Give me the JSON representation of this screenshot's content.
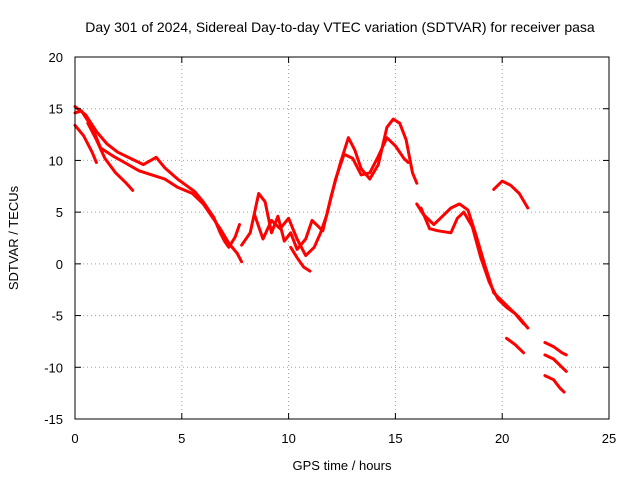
{
  "chart_data": {
    "type": "scatter",
    "title": "Day 301 of 2024, Sidereal Day-to-day VTEC variation (SDTVAR) for receiver pasa",
    "xlabel": "GPS time / hours",
    "ylabel": "SDTVAR / TECUs",
    "xlim": [
      0,
      25
    ],
    "ylim": [
      -15,
      20
    ],
    "xticks": [
      0,
      5,
      10,
      15,
      20,
      25
    ],
    "yticks": [
      -15,
      -10,
      -5,
      0,
      5,
      10,
      15,
      20
    ],
    "xtick_labels": [
      "0",
      "5",
      "10",
      "15",
      "20",
      "25"
    ],
    "ytick_labels": [
      "-15",
      "-10",
      "-5",
      "0",
      "5",
      "10",
      "15",
      "20"
    ],
    "grid": true,
    "marker": "plus",
    "color": "#ff0000",
    "series": [
      {
        "name": "track-1",
        "points": [
          [
            0.0,
            15.2
          ],
          [
            0.5,
            14.4
          ],
          [
            1.0,
            12.8
          ],
          [
            1.5,
            11.6
          ],
          [
            2.0,
            10.8
          ],
          [
            2.6,
            10.2
          ],
          [
            3.2,
            9.6
          ],
          [
            3.8,
            10.3
          ],
          [
            4.2,
            9.3
          ],
          [
            4.8,
            8.2
          ],
          [
            5.2,
            7.6
          ],
          [
            5.6,
            7.0
          ],
          [
            6.0,
            6.0
          ],
          [
            6.5,
            4.5
          ],
          [
            6.8,
            3.0
          ],
          [
            7.0,
            2.2
          ],
          [
            7.2,
            1.6
          ],
          [
            7.5,
            2.6
          ],
          [
            7.7,
            3.8
          ]
        ]
      },
      {
        "name": "track-2",
        "points": [
          [
            0.0,
            14.6
          ],
          [
            0.3,
            14.8
          ],
          [
            0.8,
            13.2
          ],
          [
            1.2,
            11.2
          ],
          [
            1.8,
            10.4
          ],
          [
            2.4,
            9.7
          ],
          [
            3.0,
            9.0
          ],
          [
            3.6,
            8.6
          ],
          [
            4.2,
            8.2
          ],
          [
            4.8,
            7.4
          ],
          [
            5.5,
            6.8
          ],
          [
            6.0,
            5.8
          ],
          [
            6.4,
            4.6
          ],
          [
            6.8,
            3.4
          ],
          [
            7.2,
            2.0
          ],
          [
            7.6,
            1.0
          ],
          [
            7.8,
            0.2
          ]
        ]
      },
      {
        "name": "track-3",
        "points": [
          [
            0.0,
            13.4
          ],
          [
            0.4,
            12.4
          ],
          [
            0.8,
            10.8
          ],
          [
            1.0,
            9.8
          ]
        ]
      },
      {
        "name": "track-4",
        "points": [
          [
            0.6,
            13.6
          ],
          [
            1.0,
            12.0
          ],
          [
            1.4,
            10.2
          ],
          [
            1.9,
            8.8
          ],
          [
            2.4,
            7.8
          ],
          [
            2.7,
            7.1
          ]
        ]
      },
      {
        "name": "track-5",
        "points": [
          [
            7.8,
            1.8
          ],
          [
            8.2,
            3.0
          ],
          [
            8.6,
            6.8
          ],
          [
            8.9,
            6.0
          ],
          [
            9.2,
            3.0
          ],
          [
            9.5,
            4.6
          ],
          [
            9.8,
            2.2
          ],
          [
            10.1,
            3.0
          ],
          [
            10.4,
            1.4
          ],
          [
            10.8,
            2.4
          ],
          [
            11.1,
            4.2
          ],
          [
            11.6,
            3.2
          ],
          [
            12.0,
            6.6
          ],
          [
            12.4,
            9.6
          ],
          [
            12.8,
            12.2
          ],
          [
            13.1,
            11.0
          ],
          [
            13.4,
            9.2
          ],
          [
            13.8,
            8.2
          ],
          [
            14.2,
            9.6
          ],
          [
            14.6,
            13.2
          ],
          [
            14.9,
            14.0
          ],
          [
            15.2,
            13.6
          ],
          [
            15.5,
            12.0
          ],
          [
            15.8,
            8.8
          ],
          [
            16.0,
            7.8
          ]
        ]
      },
      {
        "name": "track-6",
        "points": [
          [
            8.4,
            4.8
          ],
          [
            8.8,
            2.4
          ],
          [
            9.2,
            4.2
          ],
          [
            9.6,
            3.4
          ],
          [
            10.0,
            4.4
          ],
          [
            10.4,
            2.4
          ],
          [
            10.8,
            0.8
          ],
          [
            11.2,
            1.6
          ],
          [
            11.5,
            3.0
          ],
          [
            11.8,
            4.8
          ],
          [
            12.2,
            8.2
          ],
          [
            12.6,
            10.6
          ],
          [
            13.0,
            10.2
          ],
          [
            13.4,
            8.6
          ],
          [
            13.8,
            8.8
          ],
          [
            14.2,
            10.4
          ],
          [
            14.6,
            12.2
          ],
          [
            15.0,
            11.4
          ],
          [
            15.4,
            10.2
          ],
          [
            15.6,
            9.8
          ]
        ]
      },
      {
        "name": "track-7",
        "points": [
          [
            10.1,
            1.6
          ],
          [
            10.4,
            0.6
          ],
          [
            10.7,
            -0.3
          ],
          [
            11.0,
            -0.7
          ]
        ]
      },
      {
        "name": "track-8",
        "points": [
          [
            16.0,
            5.8
          ],
          [
            16.3,
            4.8
          ],
          [
            16.8,
            3.8
          ],
          [
            17.2,
            4.6
          ],
          [
            17.6,
            5.4
          ],
          [
            18.0,
            5.8
          ],
          [
            18.4,
            5.2
          ],
          [
            18.8,
            2.6
          ],
          [
            19.2,
            -0.2
          ],
          [
            19.6,
            -2.8
          ],
          [
            20.0,
            -3.6
          ],
          [
            20.4,
            -4.4
          ],
          [
            20.8,
            -5.2
          ],
          [
            21.2,
            -6.2
          ]
        ]
      },
      {
        "name": "track-9",
        "points": [
          [
            16.2,
            5.4
          ],
          [
            16.6,
            3.4
          ],
          [
            17.0,
            3.2
          ],
          [
            17.6,
            3.0
          ],
          [
            17.9,
            4.4
          ],
          [
            18.2,
            5.0
          ],
          [
            18.6,
            3.6
          ],
          [
            19.0,
            0.6
          ],
          [
            19.4,
            -1.8
          ],
          [
            19.8,
            -3.4
          ],
          [
            20.2,
            -4.2
          ],
          [
            20.6,
            -4.8
          ],
          [
            21.0,
            -5.8
          ]
        ]
      },
      {
        "name": "track-10",
        "points": [
          [
            19.6,
            7.2
          ],
          [
            20.0,
            8.0
          ],
          [
            20.4,
            7.6
          ],
          [
            20.8,
            6.8
          ],
          [
            21.2,
            5.4
          ]
        ]
      },
      {
        "name": "track-11",
        "points": [
          [
            20.2,
            -7.2
          ],
          [
            20.6,
            -7.8
          ],
          [
            21.0,
            -8.6
          ]
        ]
      },
      {
        "name": "track-12",
        "points": [
          [
            22.0,
            -7.6
          ],
          [
            22.4,
            -8.0
          ],
          [
            22.8,
            -8.6
          ],
          [
            23.0,
            -8.8
          ]
        ]
      },
      {
        "name": "track-13",
        "points": [
          [
            22.0,
            -8.8
          ],
          [
            22.4,
            -9.2
          ],
          [
            22.8,
            -10.0
          ],
          [
            23.0,
            -10.4
          ]
        ]
      },
      {
        "name": "track-14",
        "points": [
          [
            22.0,
            -10.8
          ],
          [
            22.4,
            -11.2
          ],
          [
            22.7,
            -12.0
          ],
          [
            22.9,
            -12.4
          ]
        ]
      }
    ]
  }
}
